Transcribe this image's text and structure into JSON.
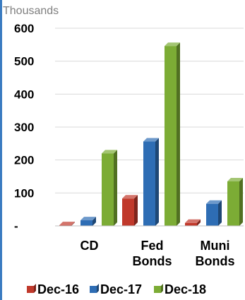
{
  "chart_data": {
    "type": "bar",
    "unit_label": "Thousands",
    "categories": [
      [
        "CD"
      ],
      [
        "Fed",
        "Bonds"
      ],
      [
        "Muni",
        "Bonds"
      ]
    ],
    "series": [
      {
        "name": "Dec-16",
        "color": "#c0392b",
        "values": [
          2,
          83,
          9
        ]
      },
      {
        "name": "Dec-17",
        "color": "#2e6db4",
        "values": [
          17,
          256,
          67
        ]
      },
      {
        "name": "Dec-18",
        "color": "#7cac35",
        "values": [
          220,
          546,
          135
        ]
      }
    ],
    "y_ticks": [
      {
        "value": 0,
        "label": "-"
      },
      {
        "value": 100,
        "label": "100"
      },
      {
        "value": 200,
        "label": "200"
      },
      {
        "value": 300,
        "label": "300"
      },
      {
        "value": 400,
        "label": "400"
      },
      {
        "value": 500,
        "label": "500"
      },
      {
        "value": 600,
        "label": "600"
      }
    ],
    "ylim": [
      0,
      600
    ],
    "grid": true,
    "legend_position": "bottom"
  }
}
